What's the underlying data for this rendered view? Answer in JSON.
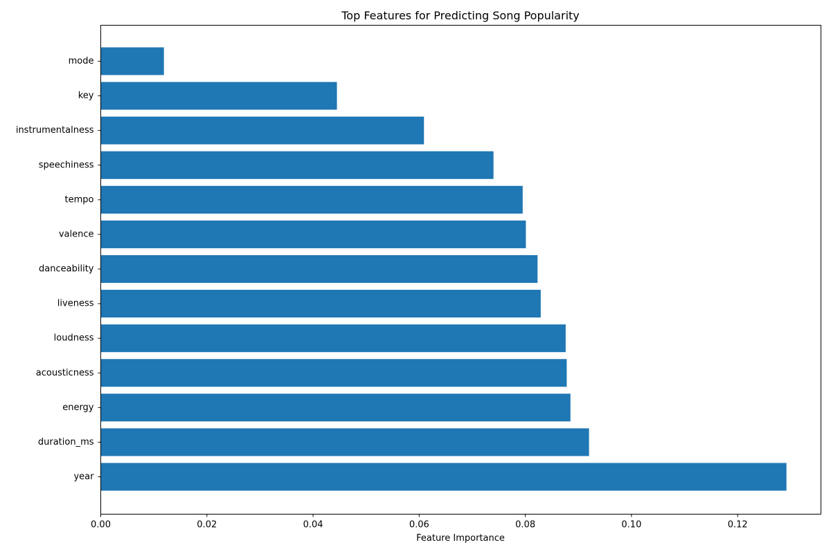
{
  "chart_data": {
    "type": "bar",
    "orientation": "horizontal",
    "title": "Top Features for Predicting Song Popularity",
    "xlabel": "Feature Importance",
    "ylabel": "",
    "categories": [
      "year",
      "duration_ms",
      "energy",
      "acousticness",
      "loudness",
      "liveness",
      "danceability",
      "valence",
      "tempo",
      "speechiness",
      "instrumentalness",
      "key",
      "mode"
    ],
    "values": [
      0.1292,
      0.092,
      0.0885,
      0.0878,
      0.0876,
      0.0829,
      0.0823,
      0.0801,
      0.0795,
      0.074,
      0.0609,
      0.0445,
      0.0119
    ],
    "xlim": [
      0,
      0.1357
    ],
    "xticks": [
      "0.00",
      "0.02",
      "0.04",
      "0.06",
      "0.08",
      "0.10",
      "0.12"
    ],
    "grid": false,
    "legend": "none",
    "bar_color": "#1f77b4"
  }
}
